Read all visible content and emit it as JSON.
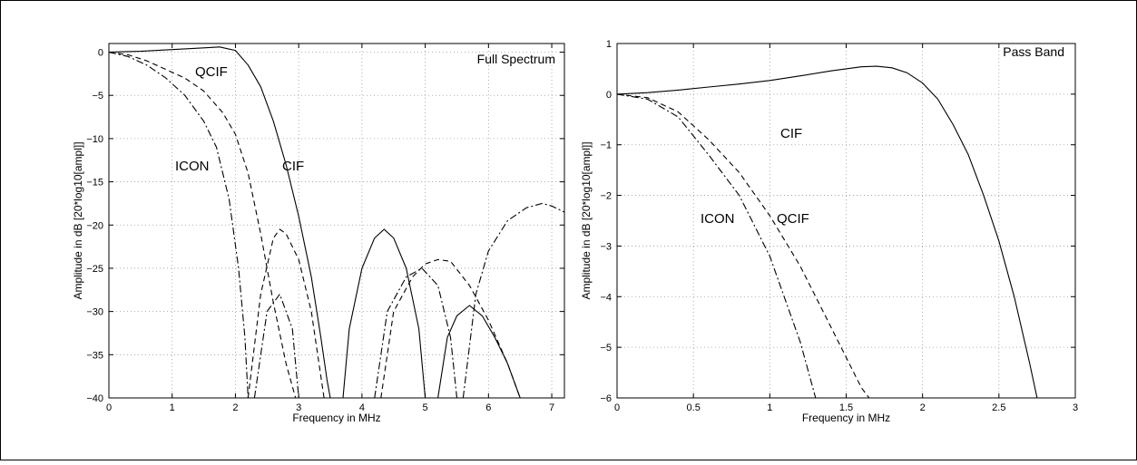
{
  "chart_data": [
    {
      "type": "line",
      "title": "Full Spectrum",
      "xlabel": "Frequency in MHz",
      "ylabel": "Amplitude in dB [20*log10[ampl]]",
      "xlim": [
        0,
        7.2
      ],
      "ylim": [
        -40,
        1
      ],
      "xticks": [
        0,
        1,
        2,
        3,
        4,
        5,
        6,
        7
      ],
      "yticks": [
        0,
        -5,
        -10,
        -15,
        -20,
        -25,
        -30,
        -35,
        -40
      ],
      "grid": true,
      "annotations": [
        "QCIF",
        "ICON",
        "CIF"
      ],
      "series": [
        {
          "name": "CIF",
          "style": "solid",
          "x": [
            0,
            0.5,
            1.0,
            1.5,
            1.75,
            2.0,
            2.2,
            2.4,
            2.6,
            2.8,
            3.0,
            3.2,
            3.35,
            3.45,
            3.5,
            null,
            3.7,
            3.8,
            4.0,
            4.2,
            4.35,
            4.5,
            4.7,
            4.9,
            5.0,
            null,
            5.2,
            5.35,
            5.5,
            5.7,
            5.9,
            6.1,
            6.3,
            6.5
          ],
          "y": [
            0,
            0.1,
            0.3,
            0.5,
            0.6,
            0.2,
            -1.5,
            -4,
            -8,
            -13,
            -19,
            -26,
            -33,
            -38,
            -40,
            null,
            -40,
            -32,
            -25,
            -21.5,
            -20.5,
            -21.5,
            -25,
            -32,
            -40,
            null,
            -40,
            -33,
            -30.5,
            -29.3,
            -30.5,
            -33,
            -36,
            -40
          ]
        },
        {
          "name": "QCIF",
          "style": "dashed",
          "x": [
            0,
            0.3,
            0.6,
            0.9,
            1.2,
            1.5,
            1.8,
            2.0,
            2.2,
            2.4,
            2.6,
            2.8,
            2.95,
            3.05,
            null,
            2.2,
            2.4,
            2.6,
            2.7,
            2.8,
            3.0,
            3.2,
            3.4,
            null,
            4.3,
            4.5,
            4.8,
            5.0,
            5.2,
            5.4,
            5.7,
            6.0,
            6.3,
            6.5
          ],
          "y": [
            0,
            -0.3,
            -1,
            -2,
            -3,
            -4.5,
            -7,
            -9.5,
            -14,
            -21,
            -29,
            -36,
            -40,
            -40,
            null,
            -40,
            -28,
            -21.5,
            -20.5,
            -21,
            -24,
            -30,
            -40,
            null,
            -40,
            -30,
            -26,
            -24.5,
            -24,
            -24.2,
            -27,
            -31,
            -36,
            -40
          ]
        },
        {
          "name": "ICON",
          "style": "dashdot",
          "x": [
            0,
            0.3,
            0.6,
            0.9,
            1.2,
            1.5,
            1.7,
            1.9,
            2.05,
            2.15,
            2.2,
            null,
            2.3,
            2.5,
            2.7,
            2.9,
            3.0,
            null,
            4.2,
            4.4,
            4.7,
            4.95,
            5.2,
            5.4,
            5.5,
            null,
            5.6,
            5.8,
            6.0,
            6.3,
            6.6,
            6.85,
            7.0,
            7.2
          ],
          "y": [
            0,
            -0.5,
            -1.5,
            -3,
            -5,
            -8,
            -11,
            -17,
            -25,
            -33,
            -40,
            null,
            -40,
            -30,
            -28,
            -32,
            -40,
            null,
            -40,
            -30,
            -26,
            -25,
            -27,
            -33,
            -40,
            null,
            -40,
            -28,
            -23,
            -19.5,
            -18,
            -17.5,
            -17.8,
            -18.5
          ]
        }
      ]
    },
    {
      "type": "line",
      "title": "Pass Band",
      "xlabel": "Frequency in MHz",
      "ylabel": "Amplitude in dB [20*log10[ampl]]",
      "xlim": [
        0,
        3
      ],
      "ylim": [
        -6,
        1
      ],
      "xticks": [
        0,
        0.5,
        1,
        1.5,
        2,
        2.5,
        3
      ],
      "yticks": [
        1,
        0,
        -1,
        -2,
        -3,
        -4,
        -5,
        -6
      ],
      "grid": true,
      "annotations": [
        "CIF",
        "ICON",
        "QCIF"
      ],
      "series": [
        {
          "name": "CIF",
          "style": "solid",
          "x": [
            0,
            0.2,
            0.4,
            0.6,
            0.8,
            1.0,
            1.2,
            1.4,
            1.6,
            1.7,
            1.8,
            1.9,
            2.0,
            2.1,
            2.2,
            2.3,
            2.4,
            2.5,
            2.6,
            2.7,
            2.75
          ],
          "y": [
            0,
            0.03,
            0.08,
            0.14,
            0.2,
            0.27,
            0.36,
            0.46,
            0.54,
            0.55,
            0.52,
            0.42,
            0.22,
            -0.1,
            -0.6,
            -1.2,
            -2.0,
            -2.9,
            -4.0,
            -5.3,
            -6
          ]
        },
        {
          "name": "QCIF",
          "style": "dashed",
          "x": [
            0,
            0.2,
            0.4,
            0.6,
            0.8,
            1.0,
            1.2,
            1.4,
            1.6,
            1.65
          ],
          "y": [
            0,
            -0.07,
            -0.35,
            -0.9,
            -1.55,
            -2.4,
            -3.4,
            -4.6,
            -5.8,
            -6
          ]
        },
        {
          "name": "ICON",
          "style": "dashdot",
          "x": [
            0,
            0.2,
            0.4,
            0.6,
            0.8,
            1.0,
            1.2,
            1.3
          ],
          "y": [
            0,
            -0.1,
            -0.45,
            -1.2,
            -2.0,
            -3.2,
            -4.9,
            -6
          ]
        }
      ]
    }
  ]
}
